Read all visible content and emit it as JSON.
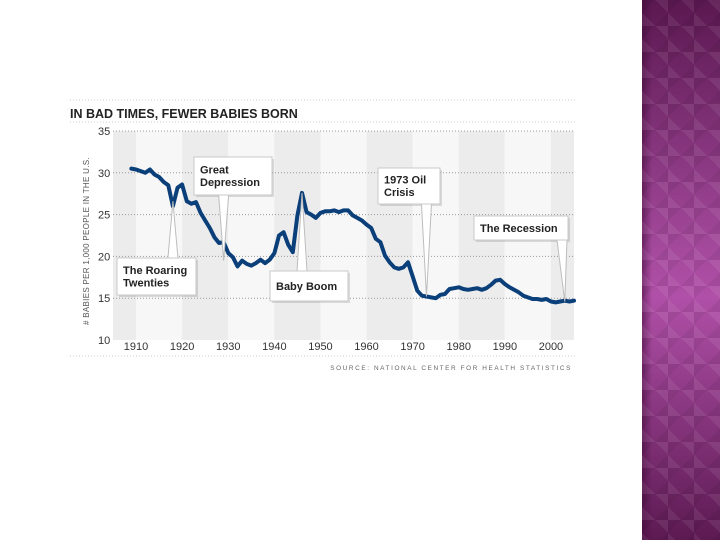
{
  "slide": {
    "accent_panel_color": "#9c3f93"
  },
  "chart_data": {
    "type": "line",
    "title": "IN BAD TIMES, FEWER BABIES BORN",
    "ylabel": "# BABIES PER 1,000 PEOPLE IN THE U.S.",
    "xlabel": "",
    "source": "SOURCE: NATIONAL CENTER FOR HEALTH STATISTICS",
    "xlim": [
      1905,
      2005
    ],
    "ylim": [
      10,
      35
    ],
    "x_ticks": [
      1910,
      1920,
      1930,
      1940,
      1950,
      1960,
      1970,
      1980,
      1990,
      2000
    ],
    "y_ticks": [
      10,
      15,
      20,
      25,
      30,
      35
    ],
    "line_color": "#0a3f7a",
    "series": [
      {
        "name": "Birth rate",
        "x": [
          1909,
          1910,
          1911,
          1912,
          1913,
          1914,
          1915,
          1916,
          1917,
          1918,
          1919,
          1920,
          1921,
          1922,
          1923,
          1924,
          1925,
          1926,
          1927,
          1928,
          1929,
          1930,
          1931,
          1932,
          1933,
          1934,
          1935,
          1936,
          1937,
          1938,
          1939,
          1940,
          1941,
          1942,
          1943,
          1944,
          1945,
          1946,
          1947,
          1948,
          1949,
          1950,
          1951,
          1952,
          1953,
          1954,
          1955,
          1956,
          1957,
          1958,
          1959,
          1960,
          1961,
          1962,
          1963,
          1964,
          1965,
          1966,
          1967,
          1968,
          1969,
          1970,
          1971,
          1972,
          1973,
          1974,
          1975,
          1976,
          1977,
          1978,
          1979,
          1980,
          1981,
          1982,
          1983,
          1984,
          1985,
          1986,
          1987,
          1988,
          1989,
          1990,
          1991,
          1992,
          1993,
          1994,
          1995,
          1996,
          1997,
          1998,
          1999,
          2000,
          2001,
          2002,
          2003,
          2004,
          2005
        ],
        "values": [
          30.5,
          30.4,
          30.2,
          30.0,
          30.4,
          29.8,
          29.5,
          28.9,
          28.5,
          26.0,
          28.2,
          28.6,
          26.6,
          26.3,
          26.5,
          25.2,
          24.3,
          23.4,
          22.3,
          21.6,
          21.7,
          20.4,
          19.9,
          18.8,
          19.5,
          19.1,
          18.9,
          19.2,
          19.6,
          19.2,
          19.6,
          20.4,
          22.5,
          22.9,
          21.4,
          20.5,
          24.9,
          27.6,
          25.3,
          25.0,
          24.6,
          25.2,
          25.4,
          25.4,
          25.5,
          25.3,
          25.5,
          25.5,
          24.9,
          24.6,
          24.3,
          23.8,
          23.4,
          22.1,
          21.7,
          20.1,
          19.3,
          18.7,
          18.5,
          18.7,
          19.3,
          17.6,
          15.9,
          15.3,
          15.2,
          15.1,
          15.0,
          15.4,
          15.5,
          16.1,
          16.2,
          16.3,
          16.1,
          16.0,
          16.1,
          16.2,
          16.0,
          16.2,
          16.6,
          17.1,
          17.2,
          16.7,
          16.3,
          16.0,
          15.7,
          15.3,
          15.1,
          14.9,
          14.9,
          14.8,
          14.9,
          14.6,
          14.5,
          14.6,
          14.7,
          14.6,
          14.7
        ]
      }
    ],
    "annotations": [
      {
        "id": "roaring-twenties",
        "lines": [
          "The Roaring",
          "Twenties"
        ],
        "x": 1918,
        "y": 26.6
      },
      {
        "id": "great-depression",
        "lines": [
          "Great",
          "Depression"
        ],
        "x": 1929,
        "y": 19.5
      },
      {
        "id": "baby-boom",
        "lines": [
          "Baby Boom"
        ],
        "x": 1946,
        "y": 27.6
      },
      {
        "id": "oil-crisis",
        "lines": [
          "1973 Oil",
          "Crisis"
        ],
        "x": 1973,
        "y": 15.2
      },
      {
        "id": "the-recession",
        "lines": [
          "The Recession"
        ],
        "x": 2003,
        "y": 14.6
      }
    ]
  }
}
